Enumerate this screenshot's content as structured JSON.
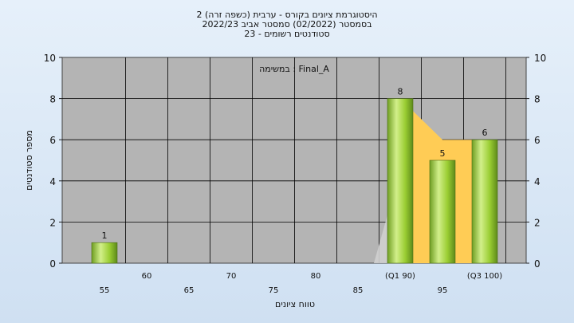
{
  "chart_data": {
    "type": "bar",
    "title_lines": [
      "היסטוגרמת ציונים בקורס - ערבית (כשפה זרה) 2",
      "בסמסטר  (02/2022)  סמסטר אביב 2022/23",
      "סטודנטים רשומים - 23"
    ],
    "annotation": "במשימה : Final_A",
    "xlabel": "טווח ציונים",
    "ylabel": "מספר סטודנטים",
    "ylim": [
      0,
      10
    ],
    "y_ticks": [
      0,
      2,
      4,
      6,
      8,
      10
    ],
    "x_tick_labels": [
      "55",
      "60",
      "65",
      "70",
      "75",
      "80",
      "85",
      "(Q1 90)",
      "95",
      "(Q3 100)"
    ],
    "categories": [
      "55",
      "90",
      "95",
      "100"
    ],
    "values": [
      1,
      8,
      5,
      6
    ],
    "bar_labels": [
      "1",
      "8",
      "5",
      "6"
    ],
    "grid": true,
    "colors": {
      "bar": "#9acd32",
      "plot_bg": "#b4b4b4",
      "quartile_band": "#ffcc55",
      "grid": "#000000"
    }
  }
}
